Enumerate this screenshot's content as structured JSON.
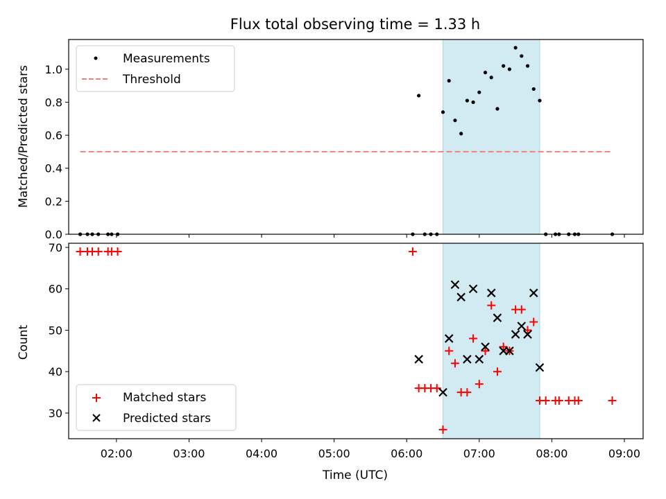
{
  "title": "Flux total observing time = 1.33 h",
  "xlabel": "Time (UTC)",
  "x_ticks": [
    "02:00",
    "03:00",
    "04:00",
    "05:00",
    "06:00",
    "07:00",
    "08:00",
    "09:00"
  ],
  "shaded_span": {
    "from": "06:30",
    "to": "07:50",
    "color": "#add8e6"
  },
  "colors": {
    "measurements": "#000000",
    "threshold": "#f08080",
    "matched": "#ff0000",
    "predicted": "#000000"
  },
  "chart_data": [
    {
      "type": "scatter",
      "ylabel": "Matched/Predicted stars",
      "ylim": [
        0,
        1.18
      ],
      "y_ticks": [
        "0.0",
        "0.2",
        "0.4",
        "0.6",
        "0.8",
        "1.0"
      ],
      "legend": {
        "placement": "top-left",
        "entries": [
          "Measurements",
          "Threshold"
        ]
      },
      "series": [
        {
          "name": "Measurements",
          "marker": "dot",
          "points": [
            [
              "01:30",
              0
            ],
            [
              "01:36",
              0
            ],
            [
              "01:40",
              0
            ],
            [
              "01:45",
              0
            ],
            [
              "01:53",
              0
            ],
            [
              "01:56",
              0
            ],
            [
              "02:01",
              0
            ],
            [
              "06:05",
              0
            ],
            [
              "06:10",
              0.84
            ],
            [
              "06:15",
              0
            ],
            [
              "06:20",
              0
            ],
            [
              "06:25",
              0
            ],
            [
              "06:30",
              0.74
            ],
            [
              "06:35",
              0.93
            ],
            [
              "06:40",
              0.69
            ],
            [
              "06:45",
              0.61
            ],
            [
              "06:50",
              0.81
            ],
            [
              "06:55",
              0.8
            ],
            [
              "07:00",
              0.86
            ],
            [
              "07:05",
              0.98
            ],
            [
              "07:10",
              0.95
            ],
            [
              "07:15",
              0.76
            ],
            [
              "07:20",
              1.02
            ],
            [
              "07:25",
              1.0
            ],
            [
              "07:30",
              1.13
            ],
            [
              "07:35",
              1.08
            ],
            [
              "07:40",
              1.02
            ],
            [
              "07:45",
              0.88
            ],
            [
              "07:50",
              0.81
            ],
            [
              "07:55",
              0
            ],
            [
              "08:03",
              0
            ],
            [
              "08:06",
              0
            ],
            [
              "08:14",
              0
            ],
            [
              "08:19",
              0
            ],
            [
              "08:22",
              0
            ],
            [
              "08:50",
              0
            ]
          ]
        },
        {
          "name": "Threshold",
          "marker": "dashed-line",
          "points": [
            [
              "01:30",
              0.5
            ],
            [
              "08:50",
              0.5
            ]
          ]
        }
      ]
    },
    {
      "type": "scatter",
      "ylabel": "Count",
      "ylim": [
        23.8,
        71
      ],
      "y_ticks": [
        "30",
        "40",
        "50",
        "60",
        "70"
      ],
      "legend": {
        "placement": "bottom-left",
        "entries": [
          "Matched stars",
          "Predicted stars"
        ]
      },
      "series": [
        {
          "name": "Matched stars",
          "marker": "plus",
          "points": [
            [
              "01:30",
              69
            ],
            [
              "01:36",
              69
            ],
            [
              "01:40",
              69
            ],
            [
              "01:45",
              69
            ],
            [
              "01:53",
              69
            ],
            [
              "01:56",
              69
            ],
            [
              "02:01",
              69
            ],
            [
              "06:05",
              69
            ],
            [
              "06:10",
              36
            ],
            [
              "06:15",
              36
            ],
            [
              "06:20",
              36
            ],
            [
              "06:25",
              36
            ],
            [
              "06:30",
              26
            ],
            [
              "06:35",
              45
            ],
            [
              "06:40",
              42
            ],
            [
              "06:45",
              35
            ],
            [
              "06:50",
              35
            ],
            [
              "06:55",
              48
            ],
            [
              "07:00",
              37
            ],
            [
              "07:05",
              45
            ],
            [
              "07:10",
              56
            ],
            [
              "07:15",
              40
            ],
            [
              "07:20",
              46
            ],
            [
              "07:25",
              45
            ],
            [
              "07:30",
              55
            ],
            [
              "07:35",
              55
            ],
            [
              "07:40",
              50
            ],
            [
              "07:45",
              52
            ],
            [
              "07:50",
              33
            ],
            [
              "07:55",
              33
            ],
            [
              "08:03",
              33
            ],
            [
              "08:06",
              33
            ],
            [
              "08:14",
              33
            ],
            [
              "08:19",
              33
            ],
            [
              "08:22",
              33
            ],
            [
              "08:50",
              33
            ]
          ]
        },
        {
          "name": "Predicted stars",
          "marker": "x",
          "points": [
            [
              "06:10",
              43
            ],
            [
              "06:30",
              35
            ],
            [
              "06:35",
              48
            ],
            [
              "06:40",
              61
            ],
            [
              "06:45",
              58
            ],
            [
              "06:50",
              43
            ],
            [
              "06:55",
              60
            ],
            [
              "07:00",
              43
            ],
            [
              "07:05",
              46
            ],
            [
              "07:10",
              59
            ],
            [
              "07:15",
              53
            ],
            [
              "07:20",
              45
            ],
            [
              "07:25",
              45
            ],
            [
              "07:30",
              49
            ],
            [
              "07:35",
              51
            ],
            [
              "07:40",
              49
            ],
            [
              "07:45",
              59
            ],
            [
              "07:50",
              41
            ]
          ]
        }
      ]
    }
  ]
}
